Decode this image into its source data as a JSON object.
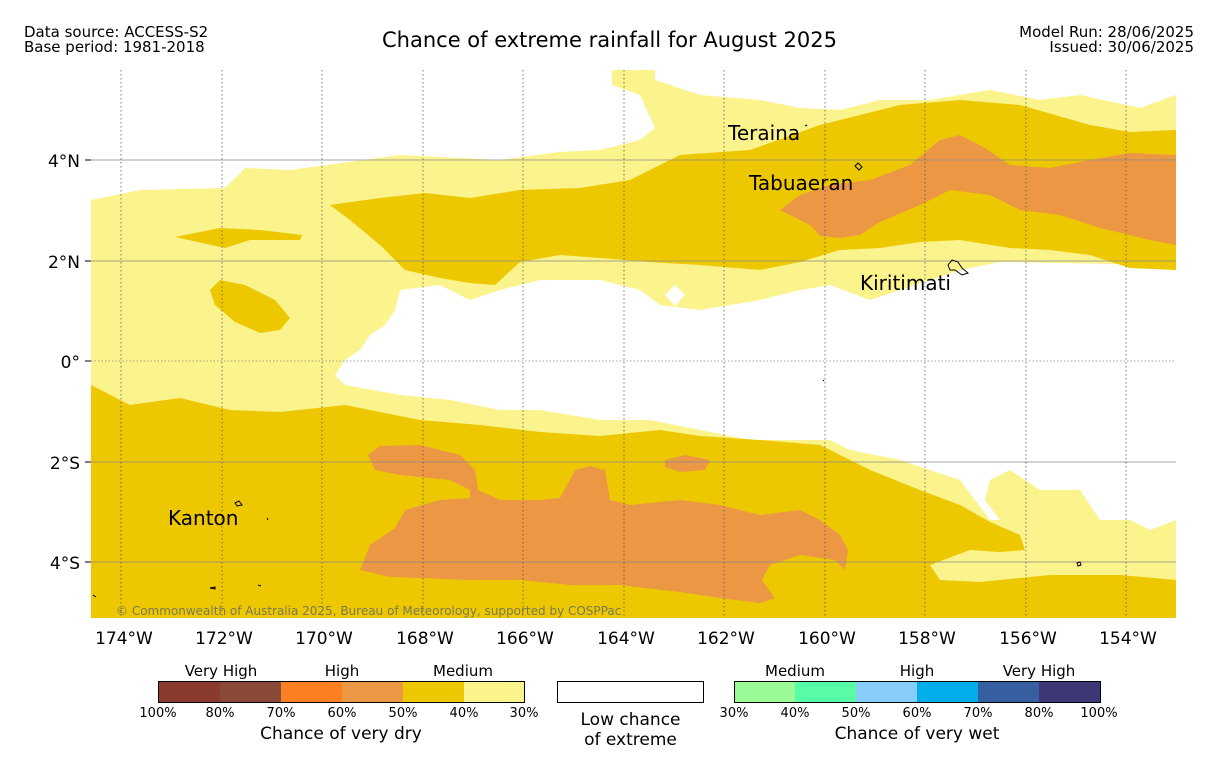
{
  "header": {
    "data_source": "Data source: ACCESS-S2",
    "base_period": "Base period: 1981-2018",
    "title": "Chance of extreme rainfall for August 2025",
    "model_run": "Model Run: 28/06/2025",
    "issued": "Issued: 30/06/2025"
  },
  "map": {
    "copyright": "© Commonwealth of Australia 2025, Bureau of Meteorology, supported by COSPPac",
    "lat_labels": [
      "4°N",
      "2°N",
      "0°",
      "2°S",
      "4°S"
    ],
    "lon_labels": [
      "174°W",
      "172°W",
      "170°W",
      "168°W",
      "166°W",
      "164°W",
      "162°W",
      "160°W",
      "158°W",
      "156°W",
      "154°W"
    ],
    "places": [
      "Teraina",
      "Tabuaeran",
      "Kiritimati",
      "Kanton"
    ],
    "colors": {
      "dry_medium_light": "#fbf38b",
      "dry_medium": "#edc800",
      "dry_high_light": "#eb9744",
      "low_chance": "#ffffff"
    }
  },
  "legend": {
    "dry": {
      "category_labels": [
        "Very High",
        "High",
        "Medium"
      ],
      "ticks": [
        "100%",
        "80%",
        "70%",
        "60%",
        "50%",
        "40%",
        "30%"
      ],
      "colors": [
        "#8b3a2e",
        "#8a4a38",
        "#fc7f22",
        "#eb9744",
        "#edc800",
        "#fbf38b"
      ],
      "caption": "Chance of very dry"
    },
    "low": {
      "line1": "Low chance",
      "line2": "of extreme",
      "color": "#ffffff"
    },
    "wet": {
      "category_labels": [
        "Medium",
        "High",
        "Very High"
      ],
      "ticks": [
        "30%",
        "40%",
        "50%",
        "60%",
        "70%",
        "80%",
        "100%"
      ],
      "colors": [
        "#9bfa98",
        "#58fba6",
        "#88cdf9",
        "#00aeec",
        "#355fa0",
        "#3d3875"
      ],
      "caption": "Chance of very wet"
    }
  }
}
